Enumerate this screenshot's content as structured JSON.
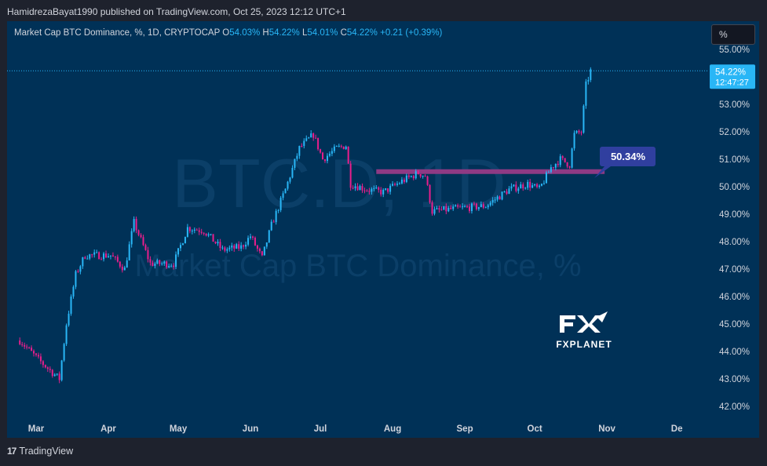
{
  "header": {
    "publisher_text": "HamidrezaBayat1990 published on TradingView.com, Oct 25, 2023 12:12 UTC+1"
  },
  "legend": {
    "symbol": "Market Cap BTC Dominance, %, 1D, CRYPTOCAP",
    "o_label": "O",
    "o_value": "54.03%",
    "h_label": "H",
    "h_value": "54.22%",
    "l_label": "L",
    "l_value": "54.01%",
    "c_label": "C",
    "c_value": "54.22%",
    "change": "+0.21 (+0.39%)"
  },
  "unit_button": "%",
  "watermark": {
    "ticker": "BTC.D, 1D",
    "name": "Market Cap BTC Dominance, %"
  },
  "price_tag": {
    "value": "54.22%",
    "countdown": "12:47:27"
  },
  "annotation": {
    "label": "50.34%"
  },
  "logo": {
    "text": "FXPLANET"
  },
  "footer": {
    "brand": "TradingView",
    "logo_glyph": "17"
  },
  "colors": {
    "background": "#003157",
    "up": "#29b6f6",
    "down": "#e91e8c",
    "zone": "#8e3a84",
    "label_bg": "#303f9f"
  },
  "chart_data": {
    "type": "candlestick",
    "y_axis_labels": [
      "55.00%",
      "54.00%",
      "53.00%",
      "52.00%",
      "51.00%",
      "50.00%",
      "49.00%",
      "48.00%",
      "47.00%",
      "46.00%",
      "45.00%",
      "44.00%",
      "43.00%",
      "42.00%"
    ],
    "ylim": [
      41.7,
      55.6
    ],
    "x_axis_labels": [
      "Mar",
      "Apr",
      "May",
      "Jun",
      "Jul",
      "Aug",
      "Sep",
      "Oct",
      "Nov",
      "De"
    ],
    "grid": false,
    "current_price": 54.22,
    "resistance_zone": {
      "level": 50.55,
      "from": "Jul 25, 2023",
      "to": "Oct 31, 2023"
    },
    "annotation_value": 50.34,
    "trend_anchors": [
      {
        "date": "Feb 22, 2023",
        "value": 44.4
      },
      {
        "date": "Mar 2, 2023",
        "value": 43.7
      },
      {
        "date": "Mar 11, 2023",
        "value": 43.0
      },
      {
        "date": "Mar 14, 2023",
        "value": 45.0
      },
      {
        "date": "Mar 18, 2023",
        "value": 46.8
      },
      {
        "date": "Mar 22, 2023",
        "value": 47.5
      },
      {
        "date": "Apr 2, 2023",
        "value": 47.5
      },
      {
        "date": "Apr 8, 2023",
        "value": 47.0
      },
      {
        "date": "Apr 12, 2023",
        "value": 48.7
      },
      {
        "date": "Apr 19, 2023",
        "value": 47.2
      },
      {
        "date": "Apr 29, 2023",
        "value": 47.2
      },
      {
        "date": "May 5, 2023",
        "value": 48.5
      },
      {
        "date": "May 12, 2023",
        "value": 48.4
      },
      {
        "date": "May 20, 2023",
        "value": 47.7
      },
      {
        "date": "May 28, 2023",
        "value": 47.8
      },
      {
        "date": "Jun 1, 2023",
        "value": 48.2
      },
      {
        "date": "Jun 6, 2023",
        "value": 47.4
      },
      {
        "date": "Jun 10, 2023",
        "value": 48.6
      },
      {
        "date": "Jun 16, 2023",
        "value": 49.9
      },
      {
        "date": "Jun 22, 2023",
        "value": 51.4
      },
      {
        "date": "Jun 28, 2023",
        "value": 51.9
      },
      {
        "date": "Jul 2, 2023",
        "value": 51.0
      },
      {
        "date": "Jul 8, 2023",
        "value": 51.4
      },
      {
        "date": "Jul 12, 2023",
        "value": 51.5
      },
      {
        "date": "Jul 14, 2023",
        "value": 50.1
      },
      {
        "date": "Jul 21, 2023",
        "value": 49.9
      },
      {
        "date": "Jul 28, 2023",
        "value": 49.8
      },
      {
        "date": "Aug 5, 2023",
        "value": 50.2
      },
      {
        "date": "Aug 12, 2023",
        "value": 50.5
      },
      {
        "date": "Aug 15, 2023",
        "value": 50.4
      },
      {
        "date": "Aug 18, 2023",
        "value": 49.1
      },
      {
        "date": "Aug 28, 2023",
        "value": 49.2
      },
      {
        "date": "Sep 10, 2023",
        "value": 49.3
      },
      {
        "date": "Sep 20, 2023",
        "value": 49.9
      },
      {
        "date": "Sep 28, 2023",
        "value": 50.1
      },
      {
        "date": "Oct 3, 2023",
        "value": 49.9
      },
      {
        "date": "Oct 8, 2023",
        "value": 50.7
      },
      {
        "date": "Oct 12, 2023",
        "value": 51.0
      },
      {
        "date": "Oct 16, 2023",
        "value": 50.8
      },
      {
        "date": "Oct 18, 2023",
        "value": 51.9
      },
      {
        "date": "Oct 21, 2023",
        "value": 52.0
      },
      {
        "date": "Oct 23, 2023",
        "value": 53.7
      },
      {
        "date": "Oct 25, 2023",
        "value": 54.22
      }
    ]
  }
}
